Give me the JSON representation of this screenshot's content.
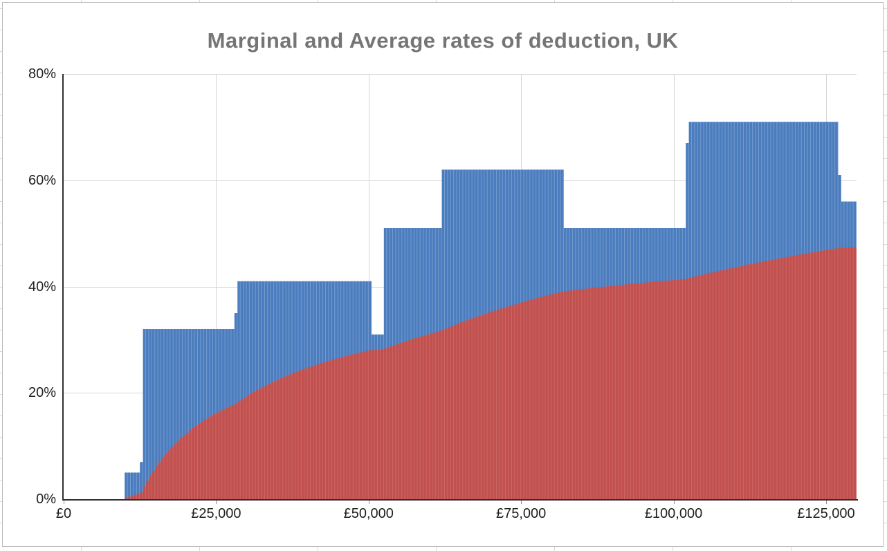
{
  "chart_data": {
    "type": "bar",
    "title": "Marginal and Average rates of deduction, UK",
    "title_color": "#757575",
    "legend": "none",
    "grid": true,
    "gridline_color": "#d6d6d6",
    "axis_line_color": "#2f2f2f",
    "x_axis": {
      "label_prefix": "£",
      "min": 0,
      "max": 130000,
      "tick_interval": 25000,
      "tick_values": [
        0,
        25000,
        50000,
        75000,
        100000,
        125000
      ],
      "tick_labels": [
        "£0",
        "£25,000",
        "£50,000",
        "£75,000",
        "£100,000",
        "£125,000"
      ]
    },
    "y_axis": {
      "min": 0,
      "max": 80,
      "tick_interval": 20,
      "tick_values": [
        0,
        20,
        40,
        60,
        80
      ],
      "tick_labels": [
        "0%",
        "20%",
        "40%",
        "60%",
        "80%"
      ]
    },
    "bar_width_pounds": 500,
    "series": [
      {
        "name": "Marginal rate",
        "type": "bar",
        "color": "#4a7cbe",
        "stripe_opacity": 0.25,
        "segments_income_from_to_ratepct": [
          [
            0,
            10000,
            0
          ],
          [
            10000,
            12500,
            5
          ],
          [
            12500,
            13000,
            7
          ],
          [
            13000,
            28000,
            32
          ],
          [
            28000,
            28500,
            35
          ],
          [
            28500,
            50500,
            41
          ],
          [
            50500,
            52500,
            31
          ],
          [
            52500,
            62000,
            51
          ],
          [
            62000,
            82000,
            62
          ],
          [
            82000,
            102000,
            51
          ],
          [
            102000,
            102500,
            67
          ],
          [
            102500,
            127000,
            71
          ],
          [
            127000,
            127500,
            61
          ],
          [
            127500,
            130000,
            56
          ]
        ]
      },
      {
        "name": "Average rate",
        "type": "bar",
        "color": "#c1504e",
        "stripe_opacity": 0.14,
        "derivation": "cumulative_average_of_marginal",
        "sample_points_pct": {
          "12500": 1.0,
          "25000": 16.0,
          "50000": 27.9,
          "62000": 31.7,
          "75000": 36.9,
          "82000": 39.1,
          "102000": 41.4,
          "127000": 47.2,
          "130000": 47.5
        }
      }
    ]
  }
}
